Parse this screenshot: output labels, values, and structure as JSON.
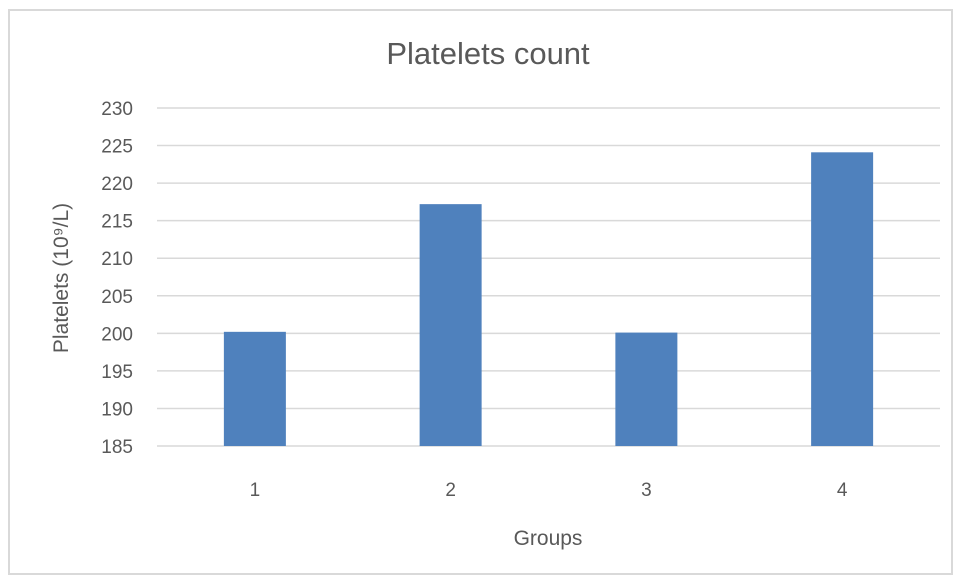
{
  "chart_data": {
    "type": "bar",
    "title": "Platelets count",
    "xlabel": "Groups",
    "ylabel": "Platelets (10⁹/L)",
    "categories": [
      "1",
      "2",
      "3",
      "4"
    ],
    "values": [
      200.2,
      217.2,
      200.1,
      224.1
    ],
    "ylim": [
      185,
      230
    ],
    "yticks": [
      "185",
      "190",
      "195",
      "200",
      "205",
      "210",
      "215",
      "220",
      "225",
      "230"
    ],
    "grid": true,
    "legend": "none",
    "colors": {
      "bar": "#4f81bd",
      "grid": "#d9d9d9",
      "text": "#595959",
      "frame": "#d9d9d9"
    }
  }
}
